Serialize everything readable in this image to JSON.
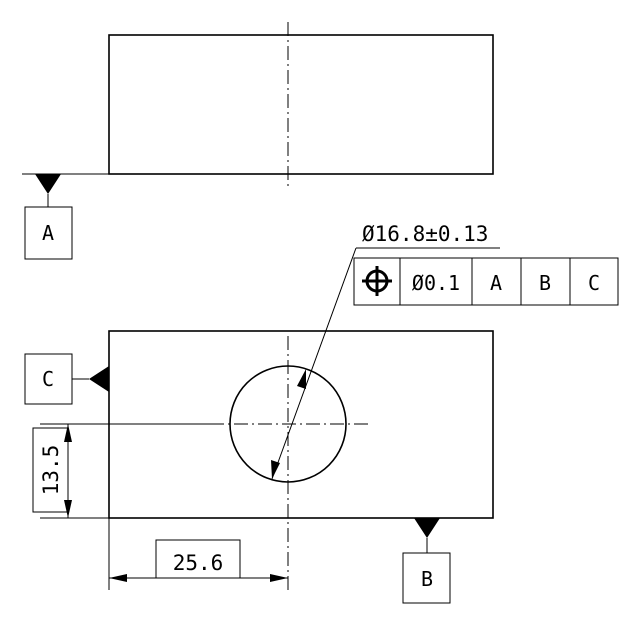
{
  "datums": {
    "a": "A",
    "b": "B",
    "c": "C"
  },
  "dimensions": {
    "hole_diameter": "Ø16.8±0.13",
    "horizontal": "25.6",
    "vertical": "13.5"
  },
  "feature_control_frame": {
    "symbol_icon": "position-icon",
    "tolerance": "Ø0.1",
    "datum_1": "A",
    "datum_2": "B",
    "datum_3": "C"
  }
}
